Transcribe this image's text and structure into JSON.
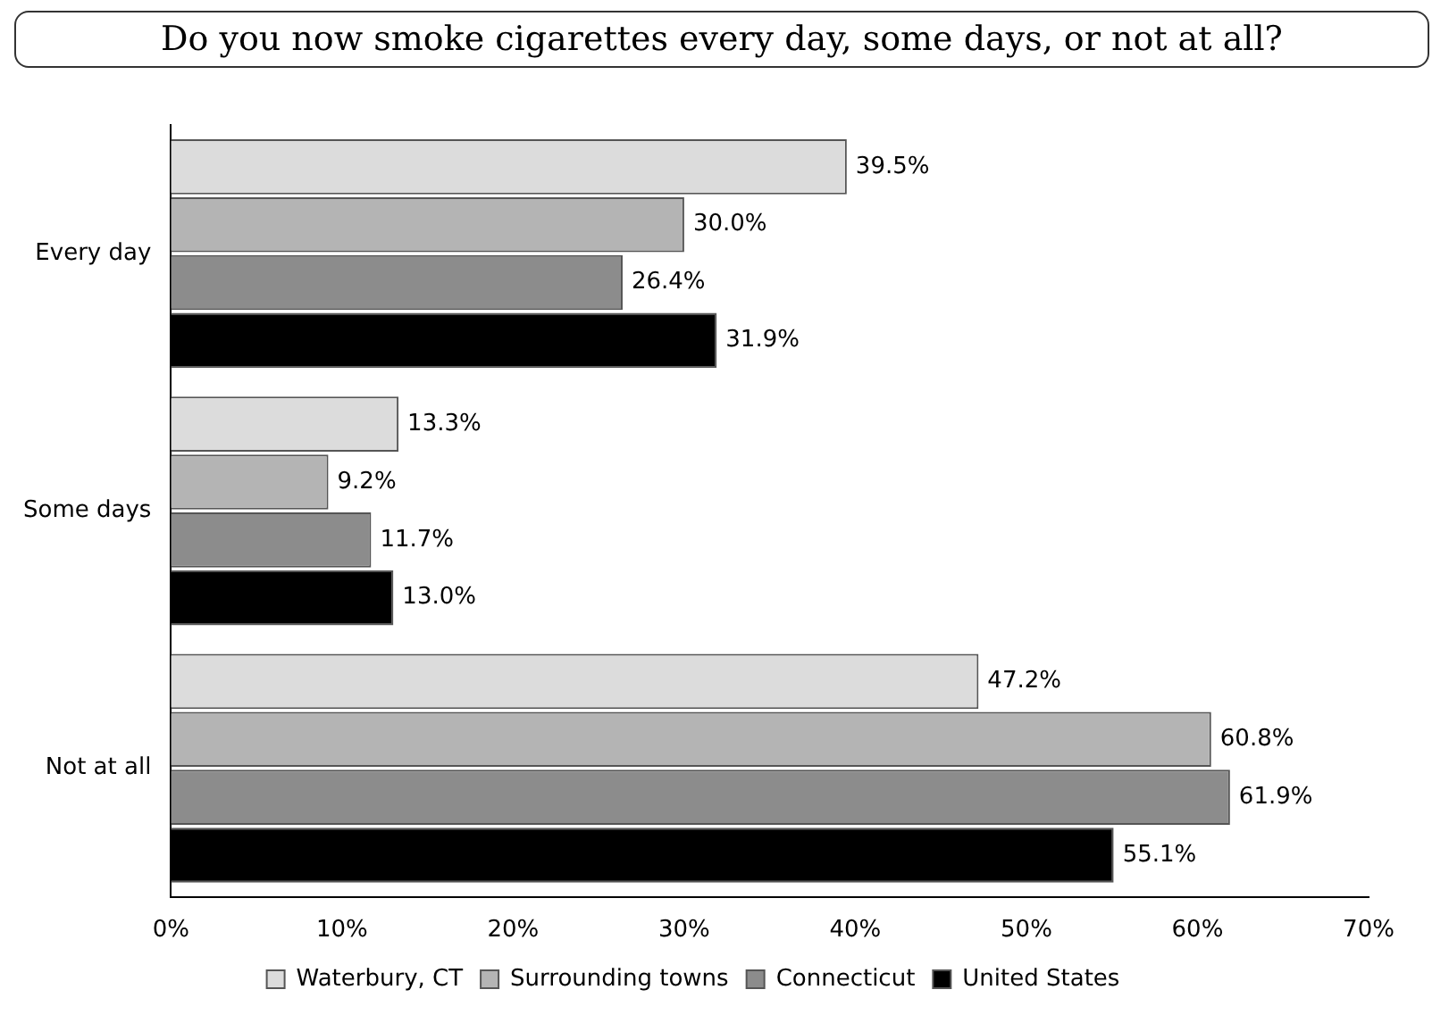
{
  "chart_data": {
    "type": "bar",
    "orientation": "horizontal",
    "title": "Do you now smoke cigarettes every day, some days, or not at all?",
    "categories": [
      "Every day",
      "Some days",
      "Not at all"
    ],
    "series": [
      {
        "name": "Waterbury, CT",
        "color": "#dcdcdc",
        "values": [
          39.5,
          13.3,
          47.2
        ]
      },
      {
        "name": "Surrounding towns",
        "color": "#b4b4b4",
        "values": [
          30.0,
          9.2,
          60.8
        ]
      },
      {
        "name": "Connecticut",
        "color": "#8c8c8c",
        "values": [
          26.4,
          11.7,
          61.9
        ]
      },
      {
        "name": "United States",
        "color": "#000000",
        "values": [
          31.9,
          13.0,
          55.1
        ]
      }
    ],
    "xlim": [
      0,
      70
    ],
    "xticks": [
      {
        "value": 0,
        "label": "0%"
      },
      {
        "value": 10,
        "label": "10%"
      },
      {
        "value": 20,
        "label": "20%"
      },
      {
        "value": 30,
        "label": "30%"
      },
      {
        "value": 40,
        "label": "40%"
      },
      {
        "value": 50,
        "label": "50%"
      },
      {
        "value": 60,
        "label": "60%"
      },
      {
        "value": 70,
        "label": "70%"
      }
    ],
    "value_labels": [
      [
        "39.5%",
        "13.3%",
        "47.2%"
      ],
      [
        "30.0%",
        "9.2%",
        "60.8%"
      ],
      [
        "26.4%",
        "11.7%",
        "61.9%"
      ],
      [
        "31.9%",
        "13.0%",
        "55.1%"
      ]
    ],
    "grid": false,
    "legend": "bottom"
  }
}
